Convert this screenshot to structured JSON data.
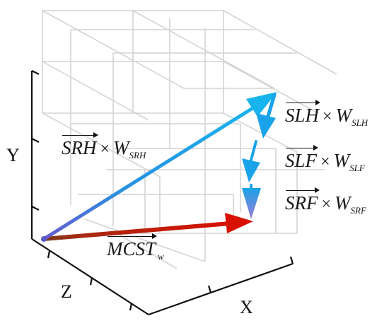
{
  "axes": {
    "x": "X",
    "y": "Y",
    "z": "Z"
  },
  "vectors": {
    "mcst": {
      "name": "MCST",
      "sub": "w",
      "color": "#cc1100"
    },
    "srh": {
      "name": "SRH",
      "sub": "SRH",
      "color": "#1aa3e8"
    },
    "slh": {
      "name": "SLH",
      "sub": "SLH",
      "color": "#1aa3e8"
    },
    "slf": {
      "name": "SLF",
      "sub": "SLF",
      "color": "#1aa3e8"
    },
    "srf": {
      "name": "SRF",
      "sub": "SRF",
      "color": "#1aa3e8"
    }
  },
  "colors": {
    "grid": "#d4d4d4",
    "axis": "#111111",
    "tail": "#5a57c8"
  }
}
